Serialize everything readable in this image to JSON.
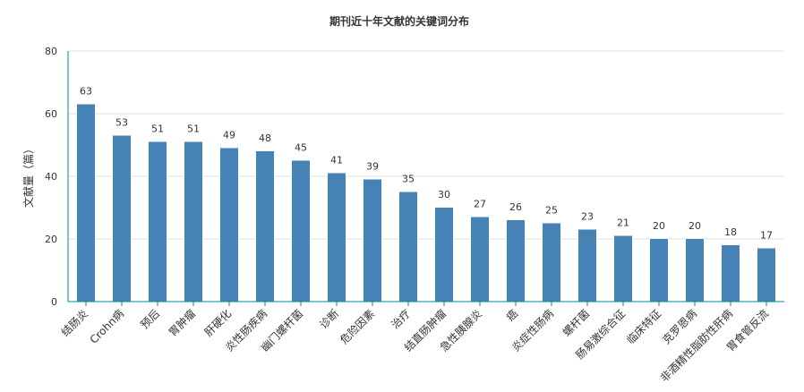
{
  "chart_data": {
    "type": "bar",
    "title": "期刊近十年文献的关键词分布",
    "ylabel": "文献量（篇）",
    "xlabel": "",
    "ylim": [
      0,
      80
    ],
    "yticks": [
      0,
      20,
      40,
      60,
      80
    ],
    "grid": true,
    "categories": [
      "结肠炎",
      "Crohn病",
      "预后",
      "胃肿瘤",
      "肝硬化",
      "炎性肠疾病",
      "幽门螺杆菌",
      "诊断",
      "危险因素",
      "治疗",
      "结直肠肿瘤",
      "急性胰腺炎",
      "癌",
      "炎症性肠病",
      "螺杆菌",
      "肠易激综合征",
      "临床特征",
      "克罗恩病",
      "非酒精性脂肪性肝病",
      "胃食管反流"
    ],
    "values": [
      63,
      53,
      51,
      51,
      49,
      48,
      45,
      41,
      39,
      35,
      30,
      27,
      26,
      25,
      23,
      21,
      20,
      20,
      18,
      17
    ],
    "data_labels": [
      "63",
      "53",
      "51",
      "51",
      "49",
      "48",
      "45",
      "41",
      "39",
      "35",
      "30",
      "27",
      "26",
      "25",
      "23",
      "21",
      "20",
      "20",
      "18",
      "17"
    ],
    "colors": {
      "bar": "#4682b4",
      "axis": "#008b8b",
      "grid": "#e0e0e0",
      "text": "#333333"
    }
  }
}
